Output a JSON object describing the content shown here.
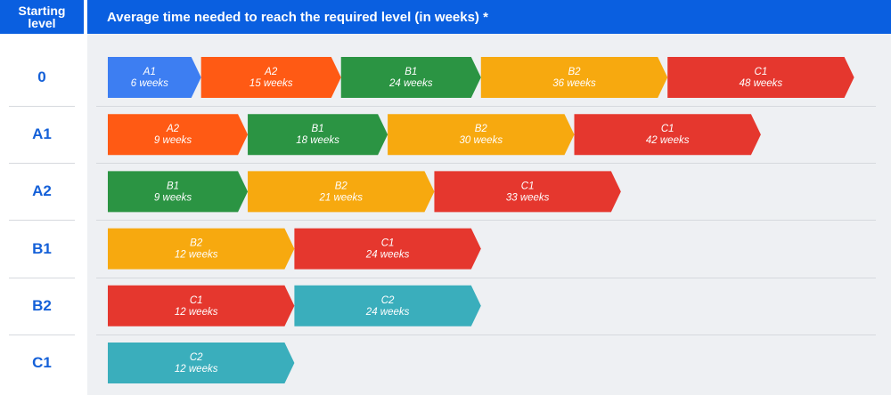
{
  "header": {
    "left_title": "Starting level",
    "right_title": "Average time needed to reach the required level (in weeks) *"
  },
  "colors": {
    "A1": "#3d7ef2",
    "A2": "#ff5a14",
    "B1": "#2b9443",
    "B2": "#f7a90f",
    "C1": "#e5372e",
    "C2": "#3aaebc",
    "header_bg": "#0a5fe0",
    "label_text": "#1460d8"
  },
  "chart_data": {
    "type": "bar",
    "stacked": true,
    "orientation": "horizontal",
    "title": "Average time needed to reach the required level (in weeks) *",
    "unit": "weeks",
    "rows": [
      {
        "start": "0",
        "segments": [
          {
            "level": "A1",
            "weeks": 6,
            "label": "6 weeks"
          },
          {
            "level": "A2",
            "weeks": 15,
            "label": "15 weeks"
          },
          {
            "level": "B1",
            "weeks": 24,
            "label": "24 weeks"
          },
          {
            "level": "B2",
            "weeks": 36,
            "label": "36 weeks"
          },
          {
            "level": "C1",
            "weeks": 48,
            "label": "48 weeks"
          }
        ]
      },
      {
        "start": "A1",
        "segments": [
          {
            "level": "A2",
            "weeks": 9,
            "label": "9 weeks"
          },
          {
            "level": "B1",
            "weeks": 18,
            "label": "18 weeks"
          },
          {
            "level": "B2",
            "weeks": 30,
            "label": "30 weeks"
          },
          {
            "level": "C1",
            "weeks": 42,
            "label": "42 weeks"
          }
        ]
      },
      {
        "start": "A2",
        "segments": [
          {
            "level": "B1",
            "weeks": 9,
            "label": "9 weeks"
          },
          {
            "level": "B2",
            "weeks": 21,
            "label": "21 weeks"
          },
          {
            "level": "C1",
            "weeks": 33,
            "label": "33 weeks"
          }
        ]
      },
      {
        "start": "B1",
        "segments": [
          {
            "level": "B2",
            "weeks": 12,
            "label": "12 weeks"
          },
          {
            "level": "C1",
            "weeks": 24,
            "label": "24 weeks"
          }
        ]
      },
      {
        "start": "B2",
        "segments": [
          {
            "level": "C1",
            "weeks": 12,
            "label": "12 weeks"
          },
          {
            "level": "C2",
            "weeks": 24,
            "label": "24 weeks"
          }
        ]
      },
      {
        "start": "C1",
        "segments": [
          {
            "level": "C2",
            "weeks": 12,
            "label": "12 weeks"
          }
        ]
      }
    ]
  }
}
